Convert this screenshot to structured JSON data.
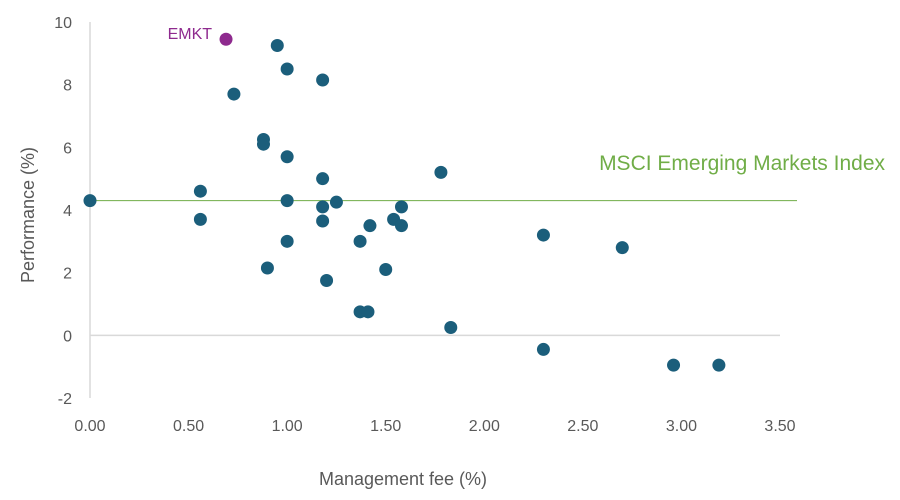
{
  "chart_data": {
    "type": "scatter",
    "title": "",
    "xlabel": "Management fee (%)",
    "ylabel": "Performance (%)",
    "xlim": [
      0,
      3.5
    ],
    "ylim": [
      -2,
      10
    ],
    "x_ticks": [
      "0.00",
      "0.50",
      "1.00",
      "1.50",
      "2.00",
      "2.50",
      "3.00",
      "3.50"
    ],
    "y_ticks": [
      "-2",
      "0",
      "2",
      "4",
      "6",
      "8",
      "10"
    ],
    "grid": false,
    "legend": "none",
    "colors": {
      "points": "#1b5e7b",
      "highlight": "#8e2a8e",
      "reference_line": "#70ad47",
      "axis": "#d9d9d9"
    },
    "reference_line": {
      "label": "MSCI Emerging Markets Index",
      "y": 4.3
    },
    "highlight": {
      "label": "EMKT",
      "x": 0.69,
      "y": 9.45
    },
    "points": [
      {
        "x": 0.0,
        "y": 4.3
      },
      {
        "x": 0.56,
        "y": 4.6
      },
      {
        "x": 0.56,
        "y": 3.7
      },
      {
        "x": 0.73,
        "y": 7.7
      },
      {
        "x": 0.88,
        "y": 6.25
      },
      {
        "x": 0.88,
        "y": 6.1
      },
      {
        "x": 0.9,
        "y": 2.15
      },
      {
        "x": 0.95,
        "y": 9.25
      },
      {
        "x": 1.0,
        "y": 8.5
      },
      {
        "x": 1.0,
        "y": 5.7
      },
      {
        "x": 1.0,
        "y": 4.3
      },
      {
        "x": 1.0,
        "y": 3.0
      },
      {
        "x": 1.18,
        "y": 8.15
      },
      {
        "x": 1.18,
        "y": 5.0
      },
      {
        "x": 1.18,
        "y": 4.1
      },
      {
        "x": 1.18,
        "y": 3.65
      },
      {
        "x": 1.2,
        "y": 1.75
      },
      {
        "x": 1.25,
        "y": 4.25
      },
      {
        "x": 1.37,
        "y": 3.0
      },
      {
        "x": 1.37,
        "y": 0.75
      },
      {
        "x": 1.42,
        "y": 3.5
      },
      {
        "x": 1.41,
        "y": 0.75
      },
      {
        "x": 1.5,
        "y": 2.1
      },
      {
        "x": 1.54,
        "y": 3.7
      },
      {
        "x": 1.58,
        "y": 4.1
      },
      {
        "x": 1.58,
        "y": 3.5
      },
      {
        "x": 1.78,
        "y": 5.2
      },
      {
        "x": 1.83,
        "y": 0.25
      },
      {
        "x": 2.3,
        "y": 3.2
      },
      {
        "x": 2.3,
        "y": -0.45
      },
      {
        "x": 2.7,
        "y": 2.8
      },
      {
        "x": 2.96,
        "y": -0.95
      },
      {
        "x": 3.19,
        "y": -0.95
      }
    ]
  }
}
